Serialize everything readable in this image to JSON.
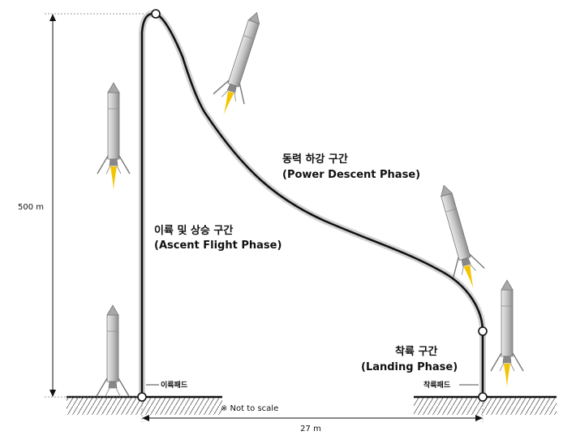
{
  "diagram": {
    "height_label": "500 m",
    "distance_label": "27 m",
    "scale_note": "※ Not to scale",
    "ascent_phase": {
      "korean": "이륙 및 상승 구간",
      "english": "(Ascent Flight Phase)"
    },
    "descent_phase": {
      "korean": "동력 하강 구간",
      "english": "(Power Descent Phase)"
    },
    "landing_phase": {
      "korean": "착륙 구간",
      "english": "(Landing Phase)"
    },
    "launch_pad_label": "이륙패드",
    "landing_pad_label": "착륙패드"
  },
  "colors": {
    "trajectory": "#111111",
    "trajectory_halo": "#d0d0d0",
    "rocket_body": "#c9c9c9",
    "flame": "#f5c400"
  }
}
